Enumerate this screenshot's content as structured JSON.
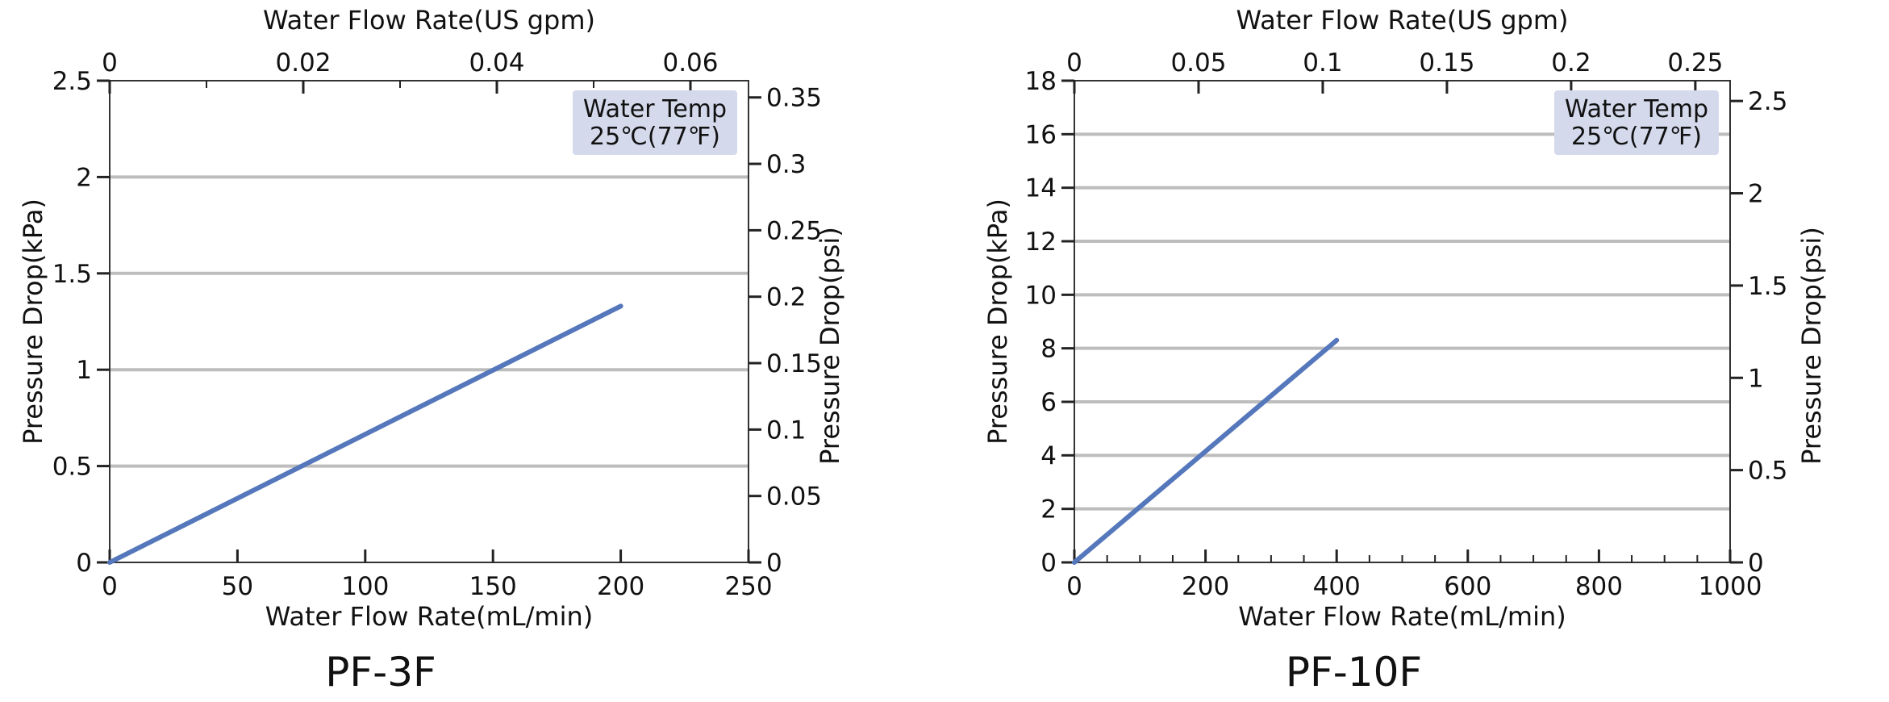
{
  "chart_data": [
    {
      "type": "line",
      "title": "PF-3F",
      "xlabel": "Water Flow Rate(mL/min)",
      "ylabel": "Pressure Drop(kPa)",
      "x2label": "Water Flow Rate(US gpm)",
      "y2label": "Pressure Drop(psi)",
      "xlim": [
        0,
        250
      ],
      "ylim": [
        0,
        2.5
      ],
      "x2lim": [
        0,
        0.066
      ],
      "y2lim": [
        0,
        0.3626
      ],
      "xticks": [
        "0",
        "50",
        "100",
        "150",
        "200",
        "250"
      ],
      "yticks": [
        "0",
        "0.5",
        "1",
        "1.5",
        "2",
        "2.5"
      ],
      "x2ticks": [
        "0",
        "0.02",
        "0.04",
        "0.06"
      ],
      "y2ticks": [
        "0",
        "0.05",
        "0.1",
        "0.15",
        "0.2",
        "0.25",
        "0.3",
        "0.35"
      ],
      "grid": true,
      "annotation": {
        "line1": "Water Temp",
        "line2": "25℃(77℉)"
      },
      "series": [
        {
          "x": [
            0,
            200
          ],
          "y": [
            0,
            1.33
          ]
        }
      ],
      "color": "#5577BB"
    },
    {
      "type": "line",
      "title": "PF-10F",
      "xlabel": "Water Flow Rate(mL/min)",
      "ylabel": "Pressure Drop(kPa)",
      "x2label": "Water Flow Rate(US gpm)",
      "y2label": "Pressure Drop(psi)",
      "xlim": [
        0,
        1000
      ],
      "ylim": [
        0,
        18
      ],
      "x2lim": [
        0,
        0.264
      ],
      "y2lim": [
        0,
        2.61
      ],
      "xticks": [
        "0",
        "200",
        "400",
        "600",
        "800",
        "1000"
      ],
      "yticks": [
        "0",
        "2",
        "4",
        "6",
        "8",
        "10",
        "12",
        "14",
        "16",
        "18"
      ],
      "x2ticks": [
        "0",
        "0.05",
        "0.1",
        "0.15",
        "0.2",
        "0.25"
      ],
      "y2ticks": [
        "0",
        "0.5",
        "1",
        "1.5",
        "2",
        "2.5"
      ],
      "grid": true,
      "annotation": {
        "line1": "Water Temp",
        "line2": "25℃(77℉)"
      },
      "series": [
        {
          "x": [
            0,
            400
          ],
          "y": [
            0,
            8.3
          ]
        }
      ],
      "color": "#5577BB"
    }
  ]
}
